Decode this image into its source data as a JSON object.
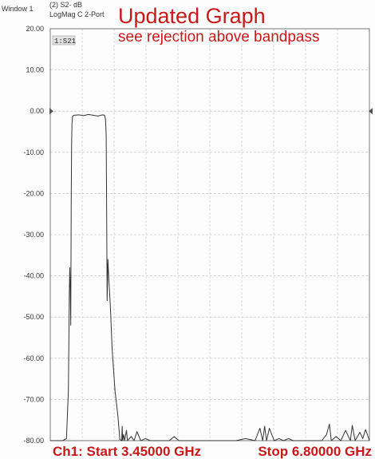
{
  "header": {
    "window": "Window 1",
    "trace": "(2) S2· dB",
    "format": "LogMag C  2-Port",
    "badge": "1:S21"
  },
  "annotation": {
    "title": "Updated Graph",
    "subtitle": "see rejection above bandpass"
  },
  "footer": {
    "start": "Ch1: Start 3.45000 GHz",
    "stop": "Stop 6.80000 GHz"
  },
  "colors": {
    "annotation": "#c61a1a",
    "trace": "#333333",
    "grid": "#bdbdbd",
    "axis": "#666666"
  },
  "chart_data": {
    "type": "line",
    "title": "Updated Graph",
    "subtitle": "see rejection above bandpass",
    "xlabel": "",
    "ylabel": "",
    "x_unit": "GHz",
    "xlim": [
      3.45,
      6.8
    ],
    "ylim": [
      -80,
      20
    ],
    "yticks": [
      20,
      10,
      0,
      -10,
      -20,
      -30,
      -40,
      -50,
      -60,
      -70,
      -80
    ],
    "ytick_labels": [
      "20.00",
      "10.00",
      "0.00",
      "-10.00",
      "-20.00",
      "-30.00",
      "-40.00",
      "-50.00",
      "-60.00",
      "-70.00",
      "-80.00"
    ],
    "grid": true,
    "reference_level": 0,
    "series": [
      {
        "x": [
          3.452,
          3.5,
          3.58,
          3.62,
          3.64,
          3.645,
          3.65,
          3.655,
          3.66,
          3.665,
          3.67,
          3.674,
          3.678,
          3.685,
          3.7,
          3.75,
          3.8,
          3.85,
          3.9,
          3.95,
          4.0,
          4.02,
          4.03,
          4.037,
          4.042,
          4.047,
          4.055,
          4.065,
          4.08,
          4.1,
          4.13,
          4.16,
          4.18,
          4.2,
          4.205,
          4.21,
          4.22,
          4.23,
          4.25,
          4.26,
          4.3,
          4.33,
          4.36,
          4.4,
          4.45,
          4.5,
          4.55,
          4.6,
          4.7,
          4.75,
          4.8,
          4.9,
          5.0,
          5.1,
          5.2,
          5.3,
          5.4,
          5.5,
          5.6,
          5.65,
          5.68,
          5.7,
          5.72,
          5.75,
          5.8,
          5.85,
          5.9,
          5.95,
          6.0,
          6.05,
          6.1,
          6.2,
          6.3,
          6.35,
          6.38,
          6.4,
          6.45,
          6.5,
          6.55,
          6.6,
          6.62,
          6.65,
          6.7,
          6.73,
          6.76,
          6.8
        ],
        "y": [
          -80,
          -80,
          -80,
          -79.5,
          -68,
          -57,
          -44,
          -38,
          -43,
          -52,
          -22,
          -8,
          -3,
          -1.2,
          -1.0,
          -0.9,
          -1.1,
          -0.8,
          -1.0,
          -1.2,
          -0.9,
          -1.0,
          -2,
          -6,
          -25,
          -46,
          -36,
          -41,
          -47,
          -58,
          -68,
          -74,
          -79.7,
          -80,
          -76.5,
          -80,
          -78.5,
          -80,
          -77.5,
          -80,
          -79,
          -80,
          -77.8,
          -80,
          -79.5,
          -80,
          -80,
          -80,
          -80,
          -79,
          -80,
          -80,
          -80,
          -80,
          -80,
          -80,
          -80,
          -79.5,
          -80,
          -77,
          -80,
          -76.5,
          -80,
          -77,
          -80,
          -79.5,
          -80,
          -79.5,
          -80,
          -80,
          -80,
          -80,
          -80,
          -78.5,
          -76,
          -80,
          -79,
          -80,
          -77.5,
          -80,
          -76.3,
          -80,
          -78,
          -79.5,
          -77.3,
          -80
        ]
      }
    ]
  }
}
